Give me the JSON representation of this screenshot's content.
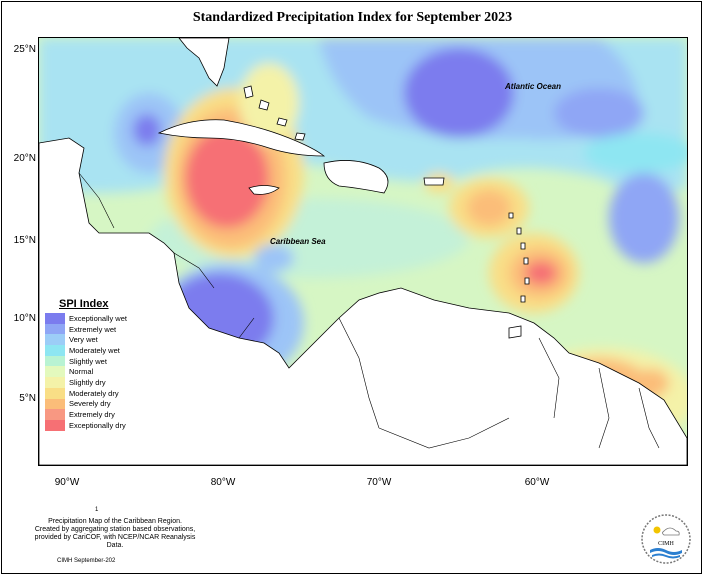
{
  "title": "Standardized Precipitation Index for September 2023",
  "axes": {
    "lat_ticks": [
      "25°N",
      "20°N",
      "15°N",
      "10°N",
      "5°N"
    ],
    "lon_ticks": [
      "90°W",
      "80°W",
      "70°W",
      "60°W"
    ]
  },
  "labels": {
    "atlantic": "Atlantic Ocean",
    "caribbean": "Caribbean Sea"
  },
  "legend": {
    "title": "SPI Index",
    "items": [
      {
        "label": "Exceptionally wet",
        "color": "#7b7cee"
      },
      {
        "label": "Extremely wet",
        "color": "#8fa6f5"
      },
      {
        "label": "Very wet",
        "color": "#9ccdf7"
      },
      {
        "label": "Moderately wet",
        "color": "#8ee6f2"
      },
      {
        "label": "Slightly wet",
        "color": "#b9f3d3"
      },
      {
        "label": "Normal",
        "color": "#e3f9bd"
      },
      {
        "label": "Slightly dry",
        "color": "#f4f2a8"
      },
      {
        "label": "Moderately dry",
        "color": "#f9de86"
      },
      {
        "label": "Severely dry",
        "color": "#fbbd79"
      },
      {
        "label": "Extremely dry",
        "color": "#f89882"
      },
      {
        "label": "Exceptionally dry",
        "color": "#f67074"
      }
    ]
  },
  "footnote": {
    "marker": "1",
    "line1": "Precipitation Map of the Caribbean Region.",
    "line2": "Created by aggregating station based observations,",
    "line3": "provided by CariCOF, with NCEP/NCAR Reanalysis Data.",
    "credit": "CIMH September-202"
  },
  "logo": {
    "text": "CIMH"
  }
}
